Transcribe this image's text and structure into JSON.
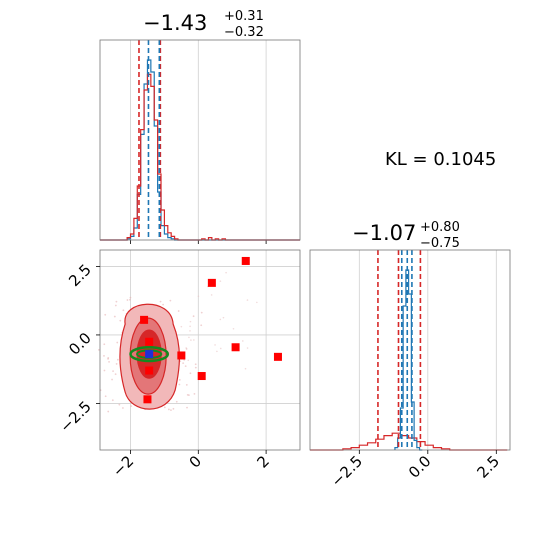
{
  "chart_data": [
    {
      "type": "histogram",
      "panel": "top-left",
      "title": {
        "main": "−1.43",
        "sup": "+0.31",
        "sub": "−0.32"
      },
      "xlim": [
        -2.9,
        3.0
      ],
      "grid": true,
      "x_ticks": [
        -2,
        0,
        2
      ],
      "bin_edges": [
        -2.9,
        -2.8,
        -2.7,
        -2.6,
        -2.5,
        -2.4,
        -2.3,
        -2.2,
        -2.1,
        -2.0,
        -1.9,
        -1.8,
        -1.7,
        -1.6,
        -1.5,
        -1.4,
        -1.3,
        -1.2,
        -1.1,
        -1.0,
        -0.9,
        -0.8,
        -0.7,
        -0.6,
        -0.5,
        -0.4,
        -0.3,
        -0.2,
        -0.1,
        0.0,
        0.1,
        0.2,
        0.3,
        0.4,
        0.5,
        0.6,
        0.7,
        0.8,
        0.9,
        1.0,
        1.1,
        1.2,
        1.3,
        1.4,
        1.5,
        1.6,
        1.7,
        1.8,
        1.9,
        2.0,
        2.1,
        2.2,
        2.3,
        2.4,
        2.5,
        2.6,
        2.7,
        2.8,
        2.9,
        3.0
      ],
      "series": [
        {
          "color": "#1f77b4",
          "counts": [
            0,
            0,
            0,
            0,
            0,
            0,
            0,
            0,
            1,
            3,
            10,
            38,
            88,
            130,
            150,
            140,
            95,
            40,
            12,
            5,
            2,
            1,
            0,
            0,
            0,
            0,
            0,
            0,
            0,
            0,
            0,
            0,
            0,
            0,
            0,
            0,
            0,
            0,
            0,
            0,
            0,
            0,
            0,
            0,
            0,
            0,
            0,
            0,
            0,
            0,
            0,
            0,
            0,
            0,
            0,
            0,
            0,
            0,
            0
          ]
        },
        {
          "color": "#d62728",
          "counts": [
            0,
            0,
            0,
            0,
            0,
            0,
            0,
            0,
            2,
            5,
            18,
            45,
            92,
            125,
            138,
            128,
            100,
            55,
            25,
            12,
            6,
            3,
            1,
            0,
            0,
            0,
            0,
            0,
            0,
            0,
            1,
            0,
            2,
            0,
            1,
            0,
            1,
            0,
            0,
            0,
            0,
            0,
            0,
            0,
            0,
            0,
            0,
            0,
            0,
            0,
            0,
            0,
            0,
            0,
            0,
            0,
            0,
            0,
            0
          ]
        }
      ],
      "quantile_lines": [
        {
          "color": "#d62728",
          "x": [
            -1.75,
            -1.12
          ]
        },
        {
          "color": "#1f77b4",
          "x": [
            -1.47,
            -1.15
          ]
        }
      ],
      "ymax": 160
    },
    {
      "type": "histogram",
      "panel": "bottom-right",
      "title": {
        "main": "−1.07",
        "sup": "+0.80",
        "sub": "−0.75"
      },
      "xlim": [
        -4.3,
        3.0
      ],
      "grid": true,
      "x_ticks": [
        -2.5,
        0.0,
        2.5
      ],
      "x_tick_labels": [
        "−2.5",
        "0.0",
        "2.5"
      ],
      "bin_edges": [
        -4.3,
        -4.0,
        -3.7,
        -3.4,
        -3.1,
        -2.8,
        -2.5,
        -2.2,
        -1.9,
        -1.6,
        -1.3,
        -1.0,
        -0.7,
        -0.4,
        -0.1,
        0.2,
        0.5,
        0.8,
        1.1,
        1.4,
        1.7,
        2.0,
        2.3,
        2.6,
        2.9
      ],
      "bin_edges_blue": [
        -1.2,
        -1.1,
        -1.0,
        -0.9,
        -0.8,
        -0.7,
        -0.6,
        -0.5,
        -0.4,
        -0.3,
        -0.2
      ],
      "series": [
        {
          "color": "#1f77b4",
          "counts": [
            2,
            10,
            35,
            120,
            150,
            130,
            40,
            8,
            2,
            0
          ]
        },
        {
          "color": "#d62728",
          "counts": [
            0,
            0,
            0,
            0,
            1,
            2,
            4,
            6,
            9,
            12,
            14,
            12,
            10,
            7,
            4,
            2,
            1,
            0,
            0,
            0,
            0,
            0,
            0,
            0
          ]
        }
      ],
      "quantile_lines": [
        {
          "color": "#d62728",
          "x": [
            -1.82,
            -1.07,
            -0.27
          ]
        },
        {
          "color": "#1f77b4",
          "x": [
            -0.95,
            -0.75,
            -0.58
          ]
        }
      ],
      "ymax": 160
    },
    {
      "type": "scatter",
      "panel": "bottom-left",
      "xlim": [
        -2.9,
        3.0
      ],
      "ylim": [
        -4.2,
        3.1
      ],
      "grid": true,
      "x_ticks": [
        -2,
        0,
        2
      ],
      "y_ticks": [
        2.5,
        0.0,
        -2.5
      ],
      "y_tick_labels": [
        "2.5",
        "0.0",
        "−2.5"
      ],
      "red_square_points": [
        [
          -1.6,
          0.55
        ],
        [
          -1.45,
          -0.25
        ],
        [
          -1.45,
          -1.3
        ],
        [
          -1.5,
          -2.35
        ],
        [
          -0.5,
          -0.75
        ],
        [
          0.4,
          1.9
        ],
        [
          1.4,
          2.7
        ],
        [
          1.1,
          -0.45
        ],
        [
          2.35,
          -0.8
        ],
        [
          0.1,
          -1.5
        ]
      ],
      "blue_square_points": [
        [
          -1.45,
          -0.7
        ]
      ],
      "contour_levels": [
        "outer",
        "middle",
        "inner"
      ],
      "contour_colors": [
        "#f2b8b9",
        "#e37678",
        "#d62728"
      ],
      "green_ellipse": {
        "cx": -1.45,
        "cy": -0.7,
        "rx": 0.55,
        "ry": 0.25,
        "color": "#138a1f"
      }
    },
    {
      "type": "text",
      "panel": "top-right",
      "text": "KL = 0.1045"
    }
  ]
}
